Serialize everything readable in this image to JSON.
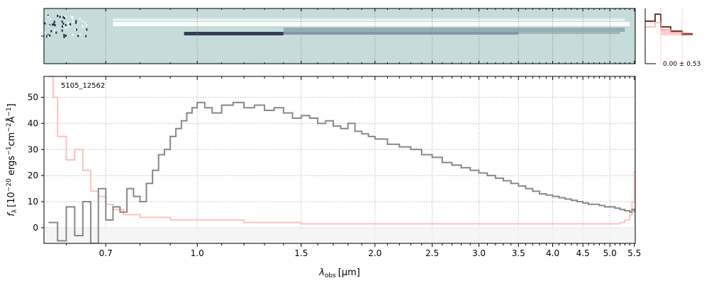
{
  "chart_data": [
    {
      "type": "heatmap",
      "description_role": "2D spectrum strip",
      "x_scale": "log",
      "xlim": [
        0.55,
        5.52
      ],
      "colormap": [
        "#1a1f3a",
        "#6e8a98",
        "#c5dcdb",
        "#f4fbfb",
        "#ffffff"
      ],
      "background": "#c5dcdb",
      "rows": [
        {
          "y": 0,
          "kind": "bright",
          "from": 0.72,
          "to": 5.4,
          "level": 0.9
        },
        {
          "y": 1,
          "kind": "dark",
          "from": 0.95,
          "to": 1.4,
          "level": 0.1
        },
        {
          "y": 2,
          "kind": "mid",
          "from": 1.4,
          "to": 5.3,
          "level": 0.55
        }
      ]
    },
    {
      "type": "line",
      "description_role": "spatial profile inset",
      "label": "0.00 ± 0.53",
      "colors": {
        "profile": "#6b3a2e",
        "fill": "#ffc2c2",
        "markers": "#f4a0a0"
      }
    },
    {
      "type": "line",
      "x_scale": "log",
      "xlim": [
        0.55,
        5.52
      ],
      "ylim": [
        -6,
        58
      ],
      "xlabel_parts": {
        "lambda": "λ",
        "sub": "obs",
        "unit": "[μm]"
      },
      "ylabel_parts": {
        "f": "f",
        "sub": "λ",
        "rest": "[10",
        "exp1": "−20",
        "mid": " ergs",
        "exp2": "−1",
        "cm": "cm",
        "exp3": "−2",
        "A": "Å",
        "exp4": "−1",
        "close": "]"
      },
      "annotation": "5105_12562",
      "x_ticks": [
        0.7,
        1.0,
        1.5,
        2.0,
        2.5,
        3.0,
        3.5,
        4.0,
        4.5,
        5.0,
        5.5
      ],
      "x_tick_labels": [
        "0.7",
        "1.0",
        "1.5",
        "2.0",
        "2.5",
        "3.0",
        "3.5",
        "4.0",
        "4.5",
        "5.0",
        "5.5"
      ],
      "y_ticks": [
        0,
        10,
        20,
        30,
        40,
        50
      ],
      "y_tick_labels": [
        "0",
        "10",
        "20",
        "30",
        "40",
        "50"
      ],
      "grid": true,
      "series": [
        {
          "role": "flux",
          "color": "#888888",
          "x": [
            0.56,
            0.58,
            0.6,
            0.62,
            0.64,
            0.66,
            0.68,
            0.7,
            0.72,
            0.74,
            0.76,
            0.78,
            0.8,
            0.82,
            0.84,
            0.86,
            0.88,
            0.9,
            0.92,
            0.94,
            0.96,
            0.98,
            1.0,
            1.03,
            1.06,
            1.1,
            1.15,
            1.2,
            1.25,
            1.3,
            1.35,
            1.4,
            1.45,
            1.5,
            1.55,
            1.6,
            1.65,
            1.7,
            1.75,
            1.8,
            1.85,
            1.9,
            1.95,
            2.0,
            2.1,
            2.2,
            2.3,
            2.4,
            2.5,
            2.6,
            2.7,
            2.8,
            2.9,
            3.0,
            3.1,
            3.2,
            3.3,
            3.4,
            3.5,
            3.6,
            3.7,
            3.8,
            3.9,
            4.0,
            4.1,
            4.2,
            4.3,
            4.4,
            4.5,
            4.6,
            4.7,
            4.8,
            4.9,
            5.0,
            5.1,
            5.2,
            5.3,
            5.4,
            5.45,
            5.5
          ],
          "y": [
            2,
            -5,
            8,
            -3,
            10,
            -6,
            15,
            3,
            8,
            6,
            15,
            12,
            10,
            17,
            22,
            28,
            30,
            35,
            38,
            41,
            44,
            46,
            48,
            46,
            44,
            47,
            48,
            46,
            47,
            45,
            46,
            44,
            42,
            43,
            42,
            40,
            41,
            39,
            38,
            40,
            37,
            36,
            35,
            34,
            32,
            31,
            30,
            28,
            27,
            25,
            24,
            23,
            22,
            21,
            20,
            19,
            18,
            17,
            16,
            15,
            14,
            13,
            12.5,
            12,
            11.5,
            11,
            10.5,
            10,
            9.5,
            9,
            9,
            8.5,
            8,
            8,
            7.5,
            7,
            6.5,
            6,
            7,
            6
          ]
        },
        {
          "role": "uncertainty",
          "color": "#ffc2c2",
          "x": [
            0.56,
            0.57,
            0.58,
            0.6,
            0.62,
            0.64,
            0.66,
            0.68,
            0.7,
            0.72,
            0.75,
            0.8,
            0.9,
            1.0,
            1.2,
            1.5,
            2.0,
            2.5,
            3.0,
            3.5,
            4.0,
            4.5,
            5.0,
            5.2,
            5.3,
            5.4,
            5.45,
            5.5
          ],
          "y": [
            58,
            50,
            35,
            26,
            30,
            22,
            14,
            12,
            9,
            7,
            5,
            4,
            3,
            3,
            2,
            1.5,
            1.5,
            1.5,
            1.5,
            1.5,
            1.5,
            1.5,
            1.5,
            2,
            3,
            5,
            10,
            22
          ]
        }
      ]
    }
  ]
}
